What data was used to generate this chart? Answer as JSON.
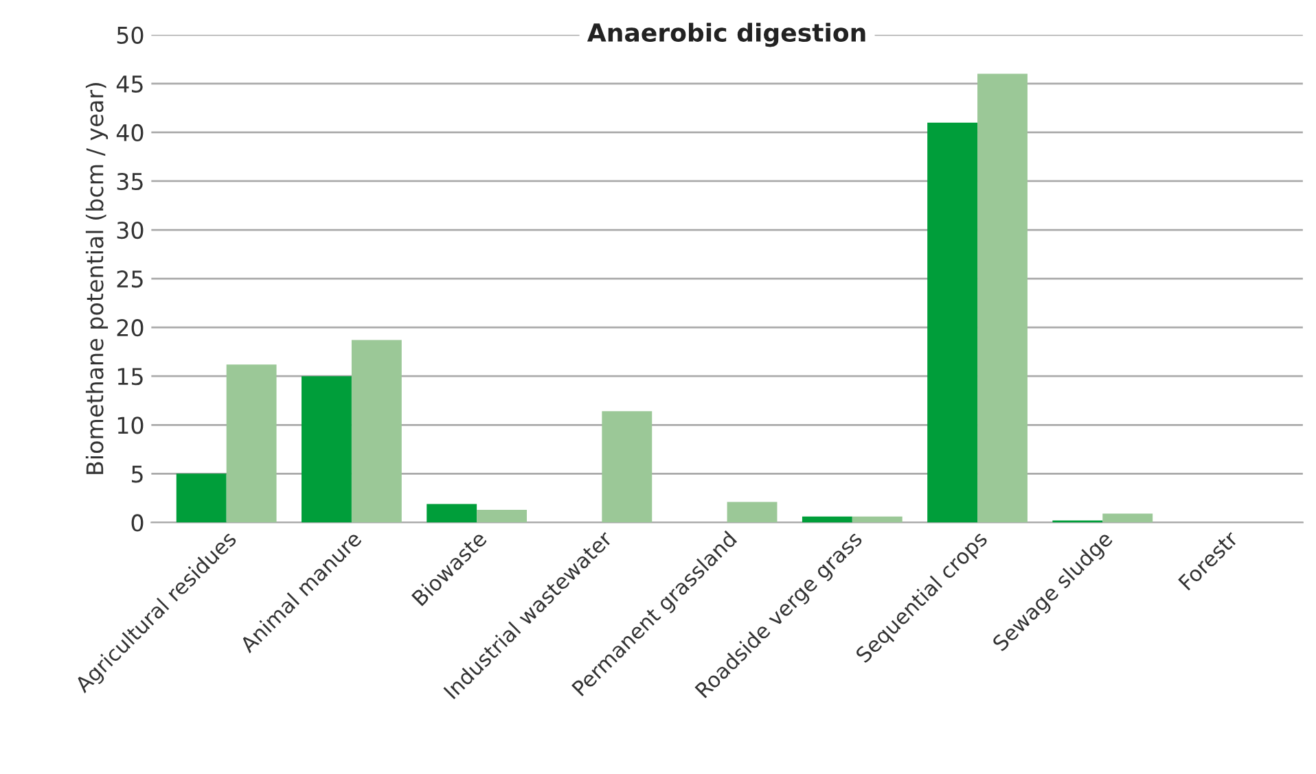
{
  "chart_data": {
    "type": "bar",
    "title": "Anaerobic digestion",
    "ylabel": "Biomethane potential (bcm / year)",
    "categories": [
      "Agricultural residues",
      "Animal manure",
      "Biowaste",
      "Industrial wastewater",
      "Permanent grassland",
      "Roadside verge grass",
      "Sequential crops",
      "Sewage sludge",
      "Forestr"
    ],
    "series": [
      {
        "color": "#009e3a",
        "values": [
          5,
          15,
          1.9,
          0,
          0,
          0.6,
          41,
          0.2,
          null
        ]
      },
      {
        "color": "#9bc897",
        "values": [
          16.2,
          18.7,
          1.3,
          11.4,
          2.1,
          0.6,
          46,
          0.9,
          null
        ]
      }
    ],
    "ylim": [
      0,
      50
    ],
    "yticks": [
      0,
      5,
      10,
      15,
      20,
      25,
      30,
      35,
      40,
      45,
      50
    ],
    "grid": "y",
    "legend": false
  }
}
